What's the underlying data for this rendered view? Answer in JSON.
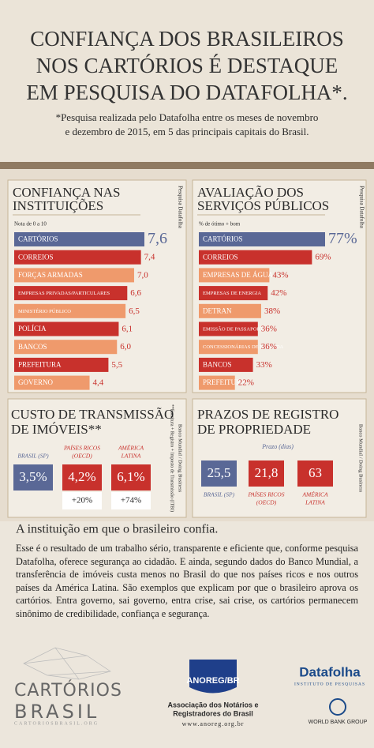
{
  "header": {
    "title_lines": [
      "CONFIANÇA DOS BRASILEIROS",
      "NOS CARTÓRIOS É DESTAQUE",
      "EM PESQUISA DO DATAFOLHA*."
    ],
    "note_lines": [
      "*Pesquisa realizada pelo Datafolha entre os meses de novembro",
      "e dezembro de 2015, em 5 das principais capitais do Brasil."
    ]
  },
  "confidence": {
    "title_lines": [
      "CONFIANÇA NAS",
      "INSTITUIÇÕES"
    ],
    "scale_note": "Nota de 0 a 10",
    "source": "Pesquisa Datafolha",
    "categories": [
      "CARTÓRIOS",
      "CORREIOS",
      "FORÇAS ARMADAS",
      "EMPRESAS PRIVADAS/PARTICULARES",
      "MINISTÉRIO PÚBLICO",
      "POLÍCIA",
      "BANCOS",
      "PREFEITURA",
      "GOVERNO"
    ],
    "values": [
      7.6,
      7.4,
      7.0,
      6.6,
      6.5,
      6.1,
      6.0,
      5.5,
      4.4
    ],
    "value_labels": [
      "7,6",
      "7,4",
      "7,0",
      "6,6",
      "6,5",
      "6,1",
      "6,0",
      "5,5",
      "4,4"
    ],
    "colors": [
      "#5a6896",
      "#c8312c",
      "#ef9a6c",
      "#c8312c",
      "#ef9a6c",
      "#c8312c",
      "#ef9a6c",
      "#c8312c",
      "#ef9a6c"
    ]
  },
  "services": {
    "title_lines": [
      "AVALIAÇÃO DOS",
      "SERVIÇOS PÚBLICOS"
    ],
    "scale_note": "% de ótimo + bom",
    "source": "Pesquisa Datafolha",
    "categories": [
      "CARTÓRIOS",
      "CORREIOS",
      "EMPRESAS DE ÁGUA",
      "EMPRESAS DE ENERGIA",
      "DETRAN",
      "EMISSÃO DE PASSAPORTE",
      "CONCESSIONÁRIAS DE ESTRADA",
      "BANCOS",
      "PREFEITURA"
    ],
    "values": [
      77,
      69,
      43,
      42,
      38,
      36,
      36,
      33,
      22
    ],
    "value_labels": [
      "77%",
      "69%",
      "43%",
      "42%",
      "38%",
      "36%",
      "36%",
      "33%",
      "22%"
    ],
    "colors": [
      "#5a6896",
      "#c8312c",
      "#ef9a6c",
      "#c8312c",
      "#ef9a6c",
      "#c8312c",
      "#ef9a6c",
      "#c8312c",
      "#ef9a6c"
    ]
  },
  "cost": {
    "title_lines": [
      "CUSTO DE TRANSMISSÃO",
      "DE IMÓVEIS**"
    ],
    "source": "Banco Mundial / Doing Business",
    "footnote": "**Escritura + Registro + Imposto de Transmissão (ITBI)",
    "items": [
      {
        "label_lines": [
          "BRASIL (SP)"
        ],
        "value": "3,5%",
        "color": "#5a6896"
      },
      {
        "label_lines": [
          "PAÍSES RICOS",
          "(OECD)"
        ],
        "value": "4,2%",
        "diff": "+20%",
        "color": "#c8312c"
      },
      {
        "label_lines": [
          "AMÉRICA",
          "LATINA"
        ],
        "value": "6,1%",
        "diff": "+74%",
        "color": "#c8312c"
      }
    ]
  },
  "registry": {
    "title_lines": [
      "PRAZOS DE REGISTRO",
      "DE PROPRIEDADE"
    ],
    "unit": "Prazo (dias)",
    "source": "Banco Mundial / Doing Business",
    "items": [
      {
        "label_lines": [
          "BRASIL (SP)"
        ],
        "value": "25,5",
        "color": "#5a6896"
      },
      {
        "label_lines": [
          "PAÍSES RICOS",
          "(OECD)"
        ],
        "value": "21,8",
        "color": "#c8312c"
      },
      {
        "label_lines": [
          "AMÉRICA",
          "LATINA"
        ],
        "value": "63",
        "color": "#c8312c"
      }
    ]
  },
  "bottom": {
    "heading": "A instituição em que o brasileiro confia.",
    "paragraph": "Esse é o resultado de um trabalho sério, transparente e eficiente que, conforme pesquisa Datafolha, oferece segurança ao cidadão. E ainda, segundo dados do Banco Mundial, a transferência de imóveis custa menos no Brasil do que nos países ricos e nos outros países da América Latina. São exemplos que explicam por que o brasileiro aprova os cartórios. Entra governo, sai governo, entra crise, sai crise, os cartórios permanecem sinônimo de credibilidade, confiança e segurança."
  },
  "footer": {
    "cartorios_lines": [
      "CARTÓRIOS",
      "BRASIL"
    ],
    "cartorios_url": "CARTORIOSBRASIL.ORG",
    "anoreg": "ANOREG/BR",
    "anoreg_lines": [
      "Associação dos Notários e",
      "Registradores do Brasil"
    ],
    "anoreg_url": "www.anoreg.org.br",
    "datafolha": "Datafolha",
    "datafolha_sub": "INSTITUTO DE PESQUISAS",
    "worldbank": "WORLD BANK GROUP"
  }
}
